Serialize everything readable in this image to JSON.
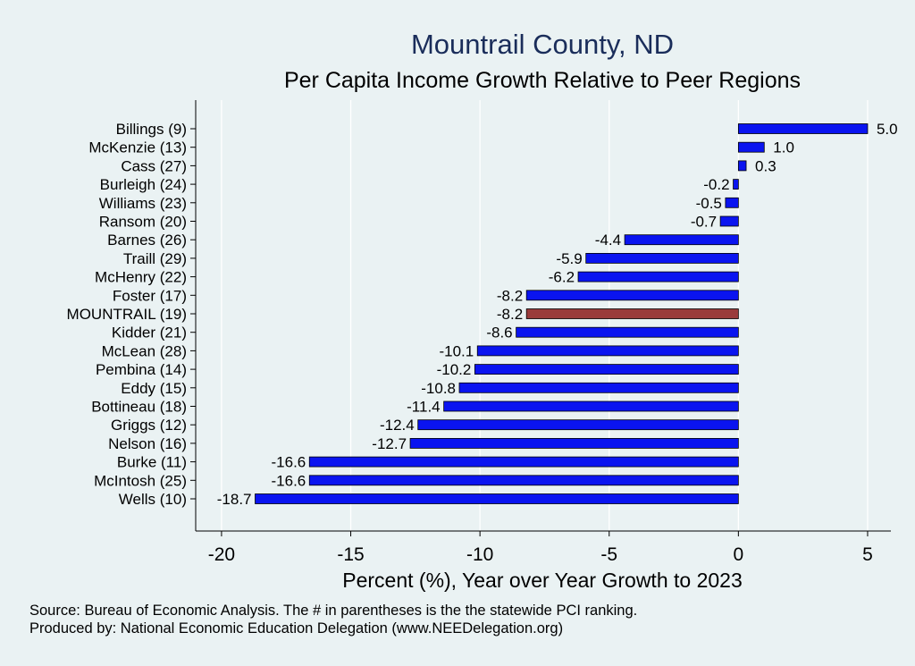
{
  "chart_data": {
    "type": "bar",
    "orientation": "horizontal",
    "title": "Mountrail County, ND",
    "subtitle": "Per Capita Income Growth Relative to Peer Regions",
    "xlabel": "Percent (%), Year over Year Growth to 2023",
    "ylabel": "",
    "xlim": [
      -21.0,
      5.9
    ],
    "xticks": [
      -20,
      -15,
      -10,
      -5,
      0,
      5
    ],
    "xtick_labels": [
      "-20",
      "-15",
      "-10",
      "-5",
      "0",
      "5"
    ],
    "grid": true,
    "categories": [
      "Billings  (9)",
      "McKenzie (13)",
      "Cass (27)",
      "Burleigh (24)",
      "Williams (23)",
      "Ransom (20)",
      "Barnes (26)",
      "Traill (29)",
      "McHenry (22)",
      "Foster (17)",
      "MOUNTRAIL (19)",
      "Kidder (21)",
      "McLean (28)",
      "Pembina (14)",
      "Eddy (15)",
      "Bottineau (18)",
      "Griggs (12)",
      "Nelson (16)",
      "Burke (11)",
      "McIntosh (25)",
      "Wells (10)"
    ],
    "values": [
      5.0,
      1.0,
      0.3,
      -0.2,
      -0.5,
      -0.7,
      -4.4,
      -5.9,
      -6.2,
      -8.2,
      -8.2,
      -8.6,
      -10.1,
      -10.2,
      -10.8,
      -11.4,
      -12.4,
      -12.7,
      -16.6,
      -16.6,
      -18.7
    ],
    "value_labels": [
      "5.0",
      "1.0",
      "0.3",
      "-0.2",
      "-0.5",
      "-0.7",
      "-4.4",
      "-5.9",
      "-6.2",
      "-8.2",
      "-8.2",
      "-8.6",
      "-10.1",
      "-10.2",
      "-10.8",
      "-11.4",
      "-12.4",
      "-12.7",
      "-16.6",
      "-16.6",
      "-18.7"
    ],
    "highlight_index": 10,
    "colors": {
      "bar": "#0a14f0",
      "highlight": "#9a3b3b",
      "bar_edge": "#000000",
      "grid": "#ffffff",
      "plot_bg": "#eaf2f3"
    }
  },
  "footnotes": {
    "source": "Source: Bureau of Economic Analysis. The # in parentheses is the the statewide PCI ranking.",
    "produced_by": "Produced by: National Economic Education Delegation (www.NEEDelegation.org)"
  }
}
